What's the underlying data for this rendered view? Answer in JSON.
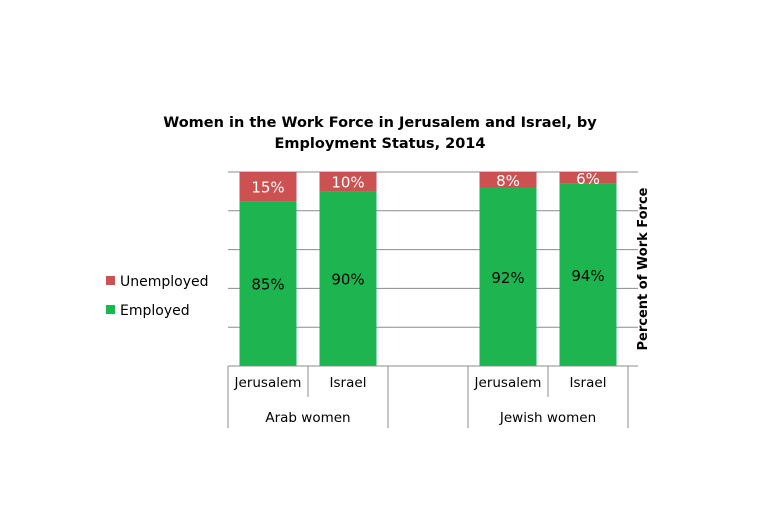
{
  "chart_data": {
    "type": "bar",
    "stacked": true,
    "title_lines": [
      "Women in the Work Force in Jerusalem and Israel, by",
      "Employment Status, 2014"
    ],
    "ylabel": "Percent of Work Force",
    "ylim": [
      0,
      100
    ],
    "y_gridline_step": 20,
    "grid": true,
    "legend_position": "left",
    "groups": [
      {
        "name": "Arab women",
        "categories": [
          "Jerusalem",
          "Israel"
        ]
      },
      {
        "name": "",
        "categories": [
          ""
        ]
      },
      {
        "name": "Jewish women",
        "categories": [
          "Jerusalem",
          "Israel"
        ]
      }
    ],
    "categories": [
      "Jerusalem",
      "Israel",
      "",
      "Jerusalem",
      "Israel"
    ],
    "series": [
      {
        "name": "Employed",
        "color": "#1db550",
        "values": [
          85,
          90,
          null,
          92,
          94
        ],
        "labels": [
          "85%",
          "90%",
          "",
          "92%",
          "94%"
        ],
        "label_color": "#000000"
      },
      {
        "name": "Unemployed",
        "color": "#cc5252",
        "values": [
          15,
          10,
          null,
          8,
          6
        ],
        "labels": [
          "15%",
          "10%",
          "",
          "8%",
          "6%"
        ],
        "label_color": "#ffffff"
      }
    ],
    "legend": [
      {
        "name": "Unemployed",
        "color": "#cc5252"
      },
      {
        "name": "Employed",
        "color": "#1db550"
      }
    ]
  }
}
